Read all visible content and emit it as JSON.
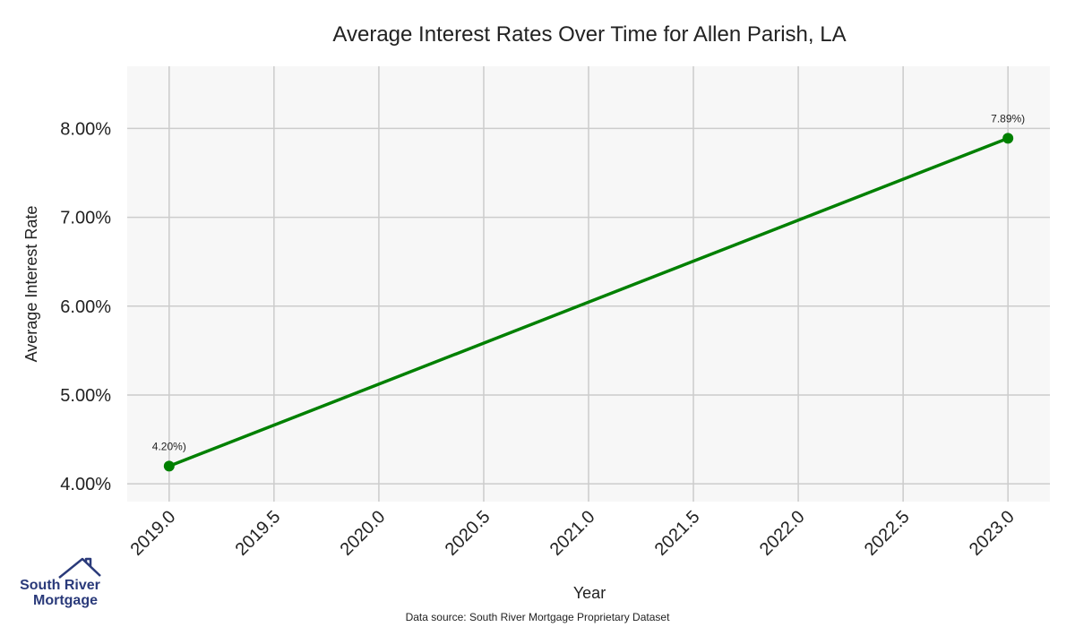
{
  "chart_data": {
    "type": "line",
    "title": "Average Interest Rates Over Time for Allen Parish, LA",
    "xlabel": "Year",
    "ylabel": "Average Interest Rate",
    "x_ticks": [
      "2019.0",
      "2019.5",
      "2020.0",
      "2020.5",
      "2021.0",
      "2021.5",
      "2022.0",
      "2022.5",
      "2023.0"
    ],
    "y_ticks": [
      "4.00%",
      "5.00%",
      "6.00%",
      "7.00%",
      "8.00%"
    ],
    "xlim": [
      2018.8,
      2023.2
    ],
    "ylim": [
      3.8,
      8.7
    ],
    "grid": true,
    "series": [
      {
        "color": "#008000",
        "x": [
          2019.0,
          2023.0
        ],
        "y": [
          4.2,
          7.89
        ],
        "labels": [
          "4.20%)",
          "7.89%)"
        ]
      }
    ]
  },
  "source_text": "Data source: South River Mortgage Proprietary Dataset",
  "logo": {
    "line1": "South River",
    "line2": "Mortgage",
    "color": "#2a3a7a"
  },
  "colors": {
    "plot_bg": "#f7f7f7",
    "grid": "#cccccc"
  }
}
